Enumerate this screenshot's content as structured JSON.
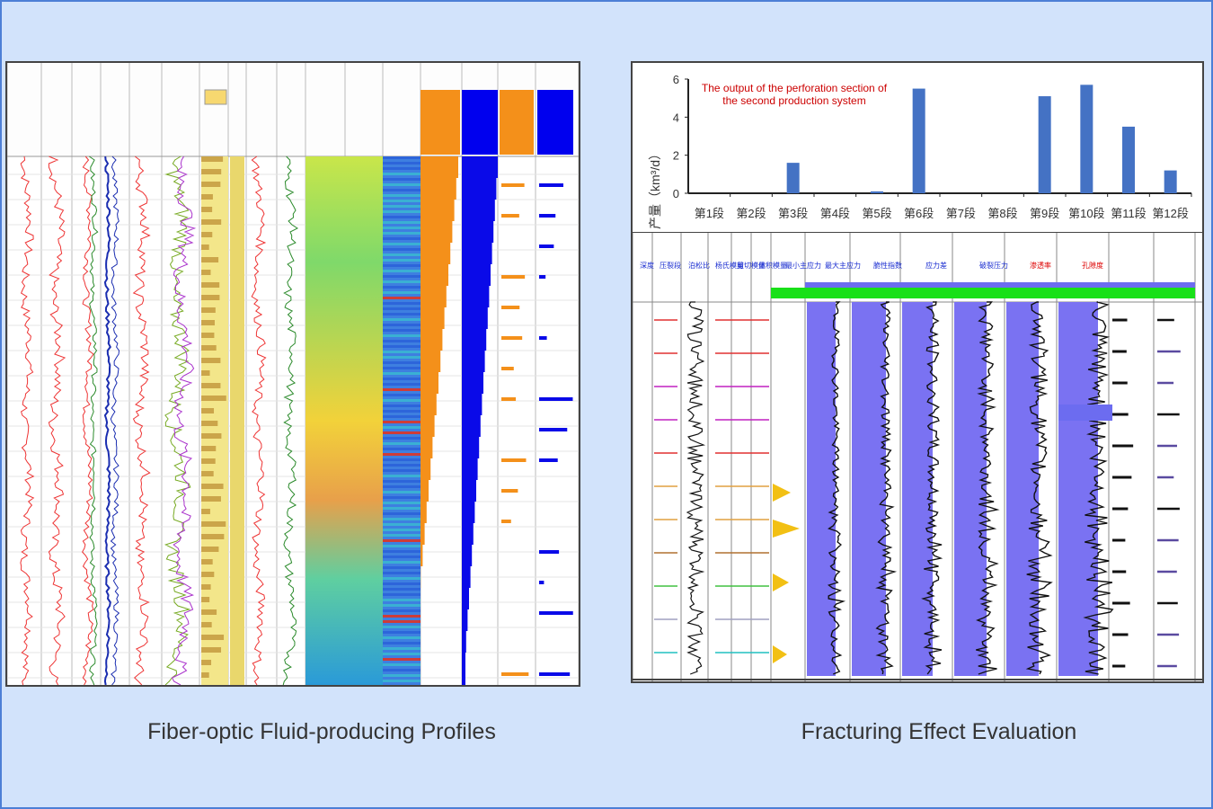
{
  "captions": {
    "left": "Fiber-optic Fluid-producing Profiles",
    "right": "Fracturing Effect Evaluation"
  },
  "chart_data": {
    "type": "bar",
    "title": "The output of the perforation section of the second production system",
    "title_line1": "The output of the perforation section of",
    "title_line2": "the second production system",
    "ylabel": "产量（km³/d）",
    "ylim": [
      0,
      6
    ],
    "yticks": [
      "0",
      "2",
      "4",
      "6"
    ],
    "categories": [
      "第1段",
      "第2段",
      "第3段",
      "第4段",
      "第5段",
      "第6段",
      "第7段",
      "第8段",
      "第9段",
      "第10段",
      "第11段",
      "第12段"
    ],
    "values": [
      0,
      0,
      1.6,
      0,
      0.1,
      5.5,
      0,
      0,
      5.1,
      5.7,
      3.5,
      1.2
    ],
    "colors": {
      "bar": "#4472c4",
      "title": "#cc0000"
    }
  },
  "right_log": {
    "headers": [
      "深度",
      "压裂段",
      "泊松比",
      "杨氏模量",
      "剪切模量",
      "体积模量",
      "最小主应力",
      "最大主应力",
      "脆性指数",
      "应力差",
      "破裂压力",
      "渗透率",
      "孔隙度"
    ]
  }
}
